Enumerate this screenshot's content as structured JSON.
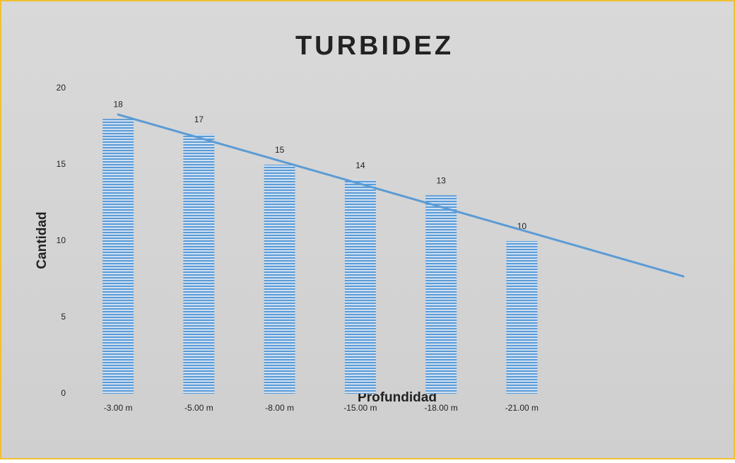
{
  "chart_data": {
    "type": "bar",
    "title": "TURBIDEZ",
    "x_label": "Profundidad",
    "y_label": "Cantidad",
    "categories": [
      "-3.00 m",
      "-5.00 m",
      "-8.00 m",
      "-15.00 m",
      "-18.00 m",
      "-21.00 m"
    ],
    "values": [
      18,
      17,
      15,
      14,
      13,
      10
    ],
    "color": "#5b9bd5",
    "ylim": [
      0,
      20
    ],
    "yticks": [
      0,
      5,
      10,
      15,
      20
    ],
    "grid": false,
    "data_labels": true,
    "trendline": {
      "type": "linear",
      "forecast_forward": 2,
      "color": "#5b9bd5"
    }
  }
}
